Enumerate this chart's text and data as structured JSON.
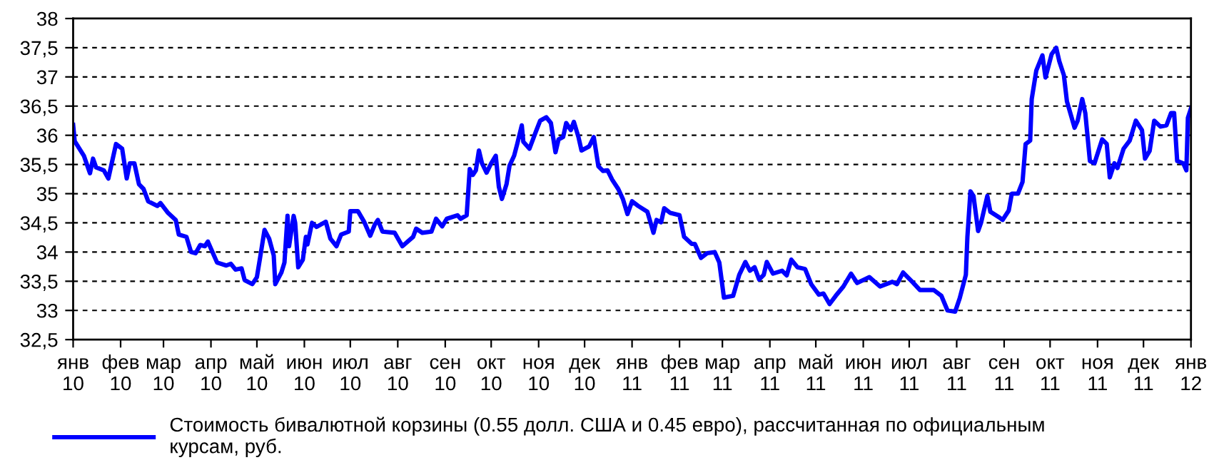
{
  "chart_data": {
    "type": "line",
    "x": [
      "2010-01-01",
      "2010-01-02",
      "2010-01-08",
      "2010-01-12",
      "2010-01-14",
      "2010-01-16",
      "2010-01-21",
      "2010-01-24",
      "2010-01-29",
      "2010-02-02",
      "2010-02-05",
      "2010-02-07",
      "2010-02-10",
      "2010-02-13",
      "2010-02-16",
      "2010-02-19",
      "2010-02-25",
      "2010-02-27",
      "2010-03-04",
      "2010-03-09",
      "2010-03-11",
      "2010-03-16",
      "2010-03-19",
      "2010-03-22",
      "2010-03-25",
      "2010-03-28",
      "2010-03-30",
      "2010-04-02",
      "2010-04-05",
      "2010-04-11",
      "2010-04-14",
      "2010-04-17",
      "2010-04-21",
      "2010-04-23",
      "2010-04-28",
      "2010-05-01",
      "2010-05-03",
      "2010-05-06",
      "2010-05-09",
      "2010-05-12",
      "2010-05-13",
      "2010-05-17",
      "2010-05-19",
      "2010-05-21",
      "2010-05-22",
      "2010-05-25",
      "2010-05-26",
      "2010-05-28",
      "2010-05-31",
      "2010-06-02",
      "2010-06-03",
      "2010-06-06",
      "2010-06-09",
      "2010-06-15",
      "2010-06-18",
      "2010-06-22",
      "2010-06-25",
      "2010-06-30",
      "2010-07-01",
      "2010-07-06",
      "2010-07-10",
      "2010-07-14",
      "2010-07-17",
      "2010-07-19",
      "2010-07-22",
      "2010-07-30",
      "2010-08-04",
      "2010-08-11",
      "2010-08-13",
      "2010-08-17",
      "2010-08-23",
      "2010-08-26",
      "2010-08-30",
      "2010-09-02",
      "2010-09-09",
      "2010-09-11",
      "2010-09-15",
      "2010-09-17",
      "2010-09-19",
      "2010-09-21",
      "2010-09-23",
      "2010-09-25",
      "2010-09-28",
      "2010-10-01",
      "2010-10-04",
      "2010-10-06",
      "2010-10-08",
      "2010-10-11",
      "2010-10-13",
      "2010-10-16",
      "2010-10-18",
      "2010-10-21",
      "2010-10-22",
      "2010-10-26",
      "2010-10-30",
      "2010-11-02",
      "2010-11-06",
      "2010-11-09",
      "2010-11-12",
      "2010-11-14",
      "2010-11-17",
      "2010-11-19",
      "2010-11-22",
      "2010-11-24",
      "2010-11-27",
      "2010-11-29",
      "2010-12-04",
      "2010-12-07",
      "2010-12-10",
      "2010-12-13",
      "2010-12-16",
      "2010-12-19",
      "2010-12-23",
      "2010-12-26",
      "2010-12-29",
      "2011-01-01",
      "2011-01-05",
      "2011-01-11",
      "2011-01-15",
      "2011-01-17",
      "2011-01-20",
      "2011-01-22",
      "2011-01-26",
      "2011-02-01",
      "2011-02-04",
      "2011-02-09",
      "2011-02-11",
      "2011-02-15",
      "2011-02-19",
      "2011-02-24",
      "2011-02-27",
      "2011-03-02",
      "2011-03-08",
      "2011-03-12",
      "2011-03-16",
      "2011-03-19",
      "2011-03-22",
      "2011-03-25",
      "2011-03-28",
      "2011-03-30",
      "2011-04-03",
      "2011-04-09",
      "2011-04-12",
      "2011-04-15",
      "2011-04-19",
      "2011-04-24",
      "2011-04-28",
      "2011-05-03",
      "2011-05-06",
      "2011-05-10",
      "2011-05-14",
      "2011-05-19",
      "2011-05-24",
      "2011-05-28",
      "2011-06-05",
      "2011-06-12",
      "2011-06-20",
      "2011-06-23",
      "2011-06-27",
      "2011-07-03",
      "2011-07-08",
      "2011-07-17",
      "2011-07-22",
      "2011-07-26",
      "2011-07-31",
      "2011-08-03",
      "2011-08-07",
      "2011-08-08",
      "2011-08-10",
      "2011-08-12",
      "2011-08-15",
      "2011-08-17",
      "2011-08-21",
      "2011-08-23",
      "2011-08-29",
      "2011-08-31",
      "2011-09-04",
      "2011-09-06",
      "2011-09-10",
      "2011-09-13",
      "2011-09-15",
      "2011-09-18",
      "2011-09-19",
      "2011-09-22",
      "2011-09-26",
      "2011-09-28",
      "2011-10-02",
      "2011-10-05",
      "2011-10-07",
      "2011-10-10",
      "2011-10-12",
      "2011-10-17",
      "2011-10-19",
      "2011-10-22",
      "2011-10-24",
      "2011-10-27",
      "2011-10-30",
      "2011-11-04",
      "2011-11-07",
      "2011-11-09",
      "2011-11-12",
      "2011-11-14",
      "2011-11-18",
      "2011-11-22",
      "2011-11-26",
      "2011-11-30",
      "2011-12-02",
      "2011-12-05",
      "2011-12-08",
      "2011-12-12",
      "2011-12-16",
      "2011-12-19",
      "2011-12-21",
      "2011-12-23",
      "2011-12-27",
      "2011-12-29",
      "2011-12-30",
      "2012-01-01"
    ],
    "series": [
      {
        "name": "Стоимость бивалютной корзины (0.55 долл. США и 0.45 евро), рассчитанная по официальным курсам, руб.",
        "color": "#0000ff",
        "values": [
          36.18,
          35.9,
          35.65,
          35.35,
          35.6,
          35.45,
          35.4,
          35.26,
          35.85,
          35.77,
          35.26,
          35.52,
          35.52,
          35.16,
          35.08,
          34.87,
          34.79,
          34.84,
          34.67,
          34.55,
          34.3,
          34.26,
          34.0,
          33.98,
          34.12,
          34.1,
          34.18,
          34.0,
          33.82,
          33.77,
          33.8,
          33.7,
          33.72,
          33.52,
          33.45,
          33.57,
          33.89,
          34.38,
          34.23,
          33.94,
          33.45,
          33.65,
          33.82,
          34.62,
          34.1,
          34.62,
          34.5,
          33.74,
          33.87,
          34.26,
          34.13,
          34.5,
          34.43,
          34.52,
          34.23,
          34.1,
          34.3,
          34.35,
          34.7,
          34.7,
          34.52,
          34.28,
          34.47,
          34.55,
          34.35,
          34.33,
          34.1,
          34.26,
          34.4,
          34.33,
          34.35,
          34.57,
          34.44,
          34.57,
          34.63,
          34.57,
          34.63,
          35.42,
          35.32,
          35.4,
          35.74,
          35.52,
          35.36,
          35.52,
          35.65,
          35.12,
          34.91,
          35.16,
          35.48,
          35.65,
          35.85,
          36.17,
          35.89,
          35.77,
          36.05,
          36.25,
          36.31,
          36.21,
          35.71,
          35.93,
          35.97,
          36.21,
          36.09,
          36.23,
          35.97,
          35.74,
          35.81,
          35.97,
          35.47,
          35.39,
          35.4,
          35.24,
          35.08,
          34.91,
          34.65,
          34.87,
          34.79,
          34.69,
          34.33,
          34.55,
          34.51,
          34.75,
          34.67,
          34.63,
          34.26,
          34.14,
          34.14,
          33.9,
          33.98,
          34.0,
          33.82,
          33.22,
          33.25,
          33.61,
          33.83,
          33.68,
          33.74,
          33.53,
          33.61,
          33.83,
          33.63,
          33.68,
          33.6,
          33.87,
          33.74,
          33.71,
          33.45,
          33.27,
          33.29,
          33.11,
          33.25,
          33.41,
          33.63,
          33.47,
          33.57,
          33.41,
          33.49,
          33.45,
          33.65,
          33.49,
          33.35,
          33.35,
          33.25,
          33.0,
          32.98,
          33.21,
          33.61,
          34.26,
          35.04,
          34.96,
          34.36,
          34.51,
          34.96,
          34.69,
          34.59,
          34.55,
          34.71,
          35.0,
          35.0,
          35.2,
          35.85,
          35.91,
          36.62,
          37.11,
          37.37,
          36.99,
          37.39,
          37.5,
          37.27,
          37.03,
          36.58,
          36.13,
          36.25,
          36.62,
          36.38,
          35.56,
          35.52,
          35.93,
          35.85,
          35.28,
          35.52,
          35.44,
          35.77,
          35.91,
          36.25,
          36.09,
          35.6,
          35.73,
          36.25,
          36.15,
          36.17,
          36.38,
          36.38,
          35.56,
          35.52,
          35.4,
          36.3,
          36.46
        ]
      }
    ],
    "xlim": [
      "2010-01-01",
      "2012-01-01"
    ],
    "xticks": [
      {
        "value": "2010-01-01",
        "label": "янв\n10"
      },
      {
        "value": "2010-02-01",
        "label": "фев\n10"
      },
      {
        "value": "2010-03-01",
        "label": "мар\n10"
      },
      {
        "value": "2010-04-01",
        "label": "апр\n10"
      },
      {
        "value": "2010-05-01",
        "label": "май\n10"
      },
      {
        "value": "2010-06-01",
        "label": "июн\n10"
      },
      {
        "value": "2010-07-01",
        "label": "июл\n10"
      },
      {
        "value": "2010-08-01",
        "label": "авг\n10"
      },
      {
        "value": "2010-09-01",
        "label": "сен\n10"
      },
      {
        "value": "2010-10-01",
        "label": "окт\n10"
      },
      {
        "value": "2010-11-01",
        "label": "ноя\n10"
      },
      {
        "value": "2010-12-01",
        "label": "дек\n10"
      },
      {
        "value": "2011-01-01",
        "label": "янв\n11"
      },
      {
        "value": "2011-02-01",
        "label": "фев\n11"
      },
      {
        "value": "2011-03-01",
        "label": "мар\n11"
      },
      {
        "value": "2011-04-01",
        "label": "апр\n11"
      },
      {
        "value": "2011-05-01",
        "label": "май\n11"
      },
      {
        "value": "2011-06-01",
        "label": "июн\n11"
      },
      {
        "value": "2011-07-01",
        "label": "июл\n11"
      },
      {
        "value": "2011-08-01",
        "label": "авг\n11"
      },
      {
        "value": "2011-09-01",
        "label": "сен\n11"
      },
      {
        "value": "2011-10-01",
        "label": "окт\n11"
      },
      {
        "value": "2011-11-01",
        "label": "ноя\n11"
      },
      {
        "value": "2011-12-01",
        "label": "дек\n11"
      },
      {
        "value": "2012-01-01",
        "label": "янв\n12"
      }
    ],
    "ylim": [
      32.5,
      38
    ],
    "yticks": [
      {
        "value": 32.5,
        "label": "32,5"
      },
      33,
      {
        "value": 33.5,
        "label": "33,5"
      },
      34,
      {
        "value": 34.5,
        "label": "34,5"
      },
      35,
      {
        "value": 35.5,
        "label": "35,5"
      },
      36,
      {
        "value": 36.5,
        "label": "36,5"
      },
      37,
      {
        "value": 37.5,
        "label": "37,5"
      },
      38
    ],
    "grid": "y",
    "legend": "bottom",
    "line_style": "solid",
    "marker": "none"
  }
}
